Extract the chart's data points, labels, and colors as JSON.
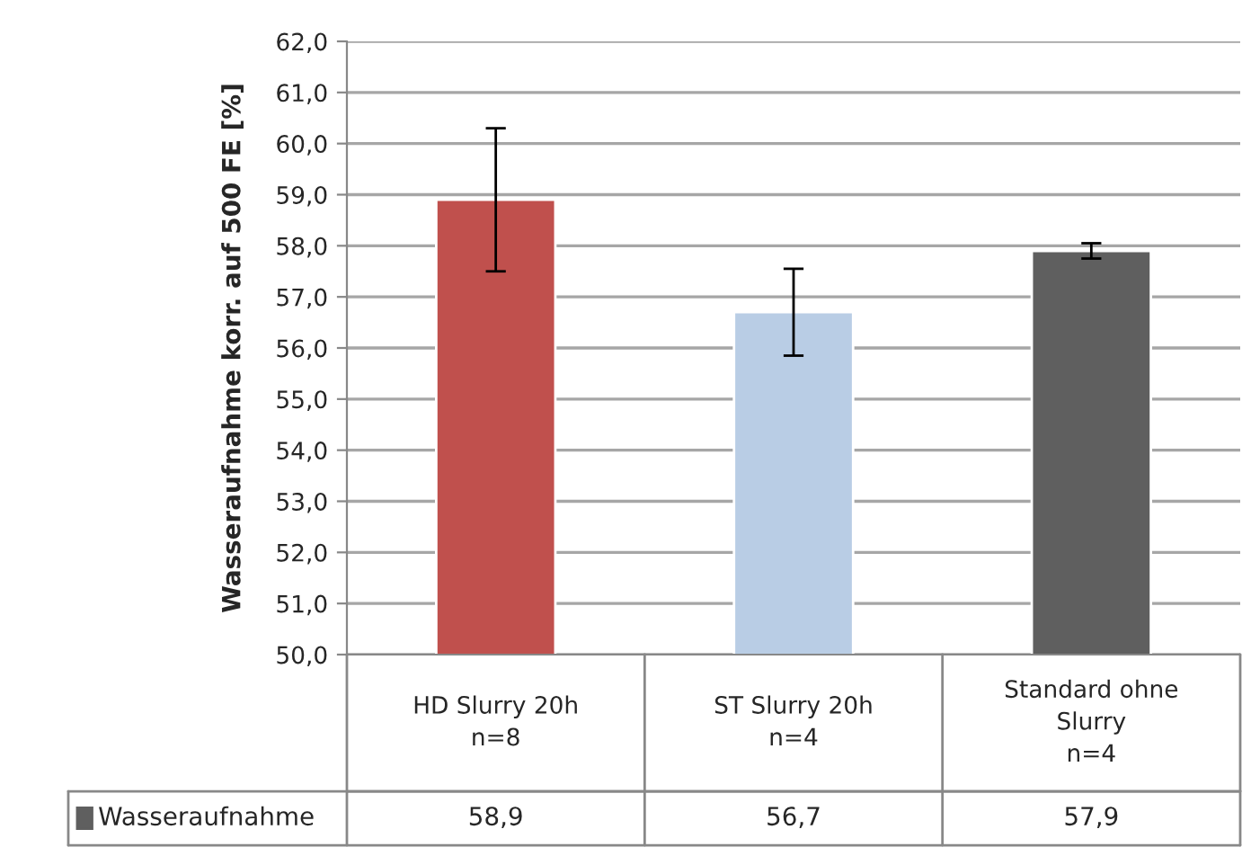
{
  "chart_data": {
    "type": "bar",
    "ylabel": "Wasseraufnahme korr. auf 500 FE [%]",
    "categories": [
      "HD Slurry 20h\nn=8",
      "ST Slurry 20h\nn=4",
      "Standard ohne\nSlurry\nn=4"
    ],
    "series": [
      {
        "name": "Wasseraufnahme",
        "color": "#5f5f5f",
        "colors": [
          "#c0504d",
          "#b9cde5",
          "#5f5f5f"
        ],
        "values": [
          58.9,
          56.7,
          57.9
        ],
        "errors": [
          1.4,
          0.85,
          0.15
        ],
        "value_labels": [
          "58,9",
          "56,7",
          "57,9"
        ]
      }
    ],
    "ylim": [
      50,
      62
    ],
    "yticks": [
      {
        "value": 50,
        "label": "50,0"
      },
      {
        "value": 51,
        "label": "51,0"
      },
      {
        "value": 52,
        "label": "52,0"
      },
      {
        "value": 53,
        "label": "53,0"
      },
      {
        "value": 54,
        "label": "54,0"
      },
      {
        "value": 55,
        "label": "55,0"
      },
      {
        "value": 56,
        "label": "56,0"
      },
      {
        "value": 57,
        "label": "57,0"
      },
      {
        "value": 58,
        "label": "58,0"
      },
      {
        "value": 59,
        "label": "59,0"
      },
      {
        "value": 60,
        "label": "60,0"
      },
      {
        "value": 61,
        "label": "61,0"
      },
      {
        "value": 62,
        "label": "62,0"
      }
    ],
    "grid": "y",
    "legend": "bottom"
  }
}
